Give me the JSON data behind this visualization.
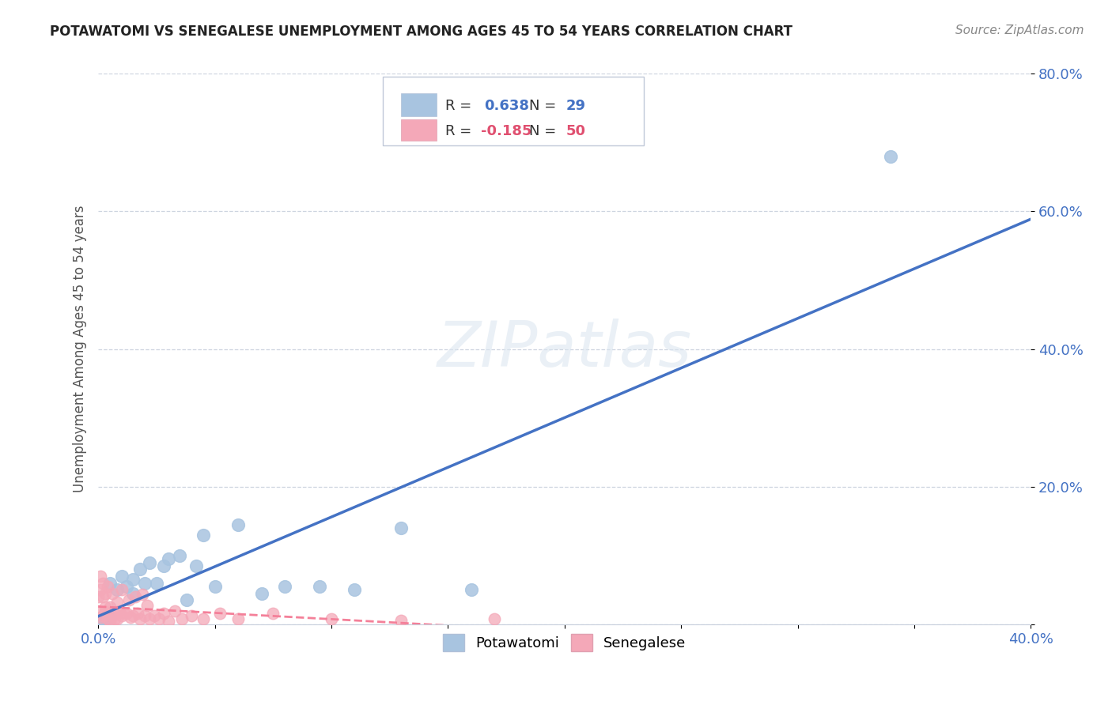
{
  "title": "POTAWATOMI VS SENEGALESE UNEMPLOYMENT AMONG AGES 45 TO 54 YEARS CORRELATION CHART",
  "source": "Source: ZipAtlas.com",
  "ylabel": "Unemployment Among Ages 45 to 54 years",
  "xlim": [
    0.0,
    0.4
  ],
  "ylim": [
    0.0,
    0.8
  ],
  "xticks": [
    0.0,
    0.05,
    0.1,
    0.15,
    0.2,
    0.25,
    0.3,
    0.35,
    0.4
  ],
  "xticklabels": [
    "0.0%",
    "",
    "",
    "",
    "",
    "",
    "",
    "",
    "40.0%"
  ],
  "yticks": [
    0.0,
    0.2,
    0.4,
    0.6,
    0.8
  ],
  "yticklabels": [
    "",
    "20.0%",
    "40.0%",
    "60.0%",
    "80.0%"
  ],
  "potawatomi_R": 0.638,
  "potawatomi_N": 29,
  "senegalese_R": -0.185,
  "senegalese_N": 50,
  "potawatomi_color": "#a8c4e0",
  "senegalese_color": "#f4a8b8",
  "potawatomi_line_color": "#4472c4",
  "senegalese_line_color": "#f48099",
  "background_color": "#ffffff",
  "potawatomi_x": [
    0.001,
    0.002,
    0.003,
    0.005,
    0.005,
    0.008,
    0.01,
    0.012,
    0.015,
    0.015,
    0.018,
    0.02,
    0.022,
    0.025,
    0.028,
    0.03,
    0.035,
    0.038,
    0.042,
    0.045,
    0.05,
    0.06,
    0.07,
    0.08,
    0.095,
    0.11,
    0.13,
    0.16,
    0.34
  ],
  "potawatomi_y": [
    0.005,
    0.003,
    0.008,
    0.01,
    0.06,
    0.05,
    0.07,
    0.055,
    0.065,
    0.045,
    0.08,
    0.06,
    0.09,
    0.06,
    0.085,
    0.095,
    0.1,
    0.035,
    0.085,
    0.13,
    0.055,
    0.145,
    0.045,
    0.055,
    0.055,
    0.05,
    0.14,
    0.05,
    0.68
  ],
  "senegalese_x": [
    0.0,
    0.0,
    0.001,
    0.001,
    0.001,
    0.002,
    0.002,
    0.002,
    0.003,
    0.003,
    0.003,
    0.004,
    0.004,
    0.005,
    0.005,
    0.006,
    0.006,
    0.007,
    0.007,
    0.008,
    0.008,
    0.009,
    0.01,
    0.01,
    0.011,
    0.012,
    0.013,
    0.014,
    0.015,
    0.016,
    0.017,
    0.018,
    0.019,
    0.02,
    0.021,
    0.022,
    0.024,
    0.026,
    0.028,
    0.03,
    0.033,
    0.036,
    0.04,
    0.045,
    0.052,
    0.06,
    0.075,
    0.1,
    0.13,
    0.17
  ],
  "senegalese_y": [
    0.02,
    0.04,
    0.01,
    0.05,
    0.07,
    0.012,
    0.04,
    0.06,
    0.018,
    0.045,
    0.025,
    0.008,
    0.055,
    0.004,
    0.025,
    0.012,
    0.045,
    0.015,
    0.008,
    0.008,
    0.032,
    0.02,
    0.012,
    0.05,
    0.016,
    0.016,
    0.036,
    0.01,
    0.012,
    0.04,
    0.016,
    0.008,
    0.044,
    0.012,
    0.028,
    0.008,
    0.012,
    0.008,
    0.016,
    0.004,
    0.02,
    0.008,
    0.012,
    0.008,
    0.016,
    0.008,
    0.016,
    0.008,
    0.006,
    0.008
  ]
}
